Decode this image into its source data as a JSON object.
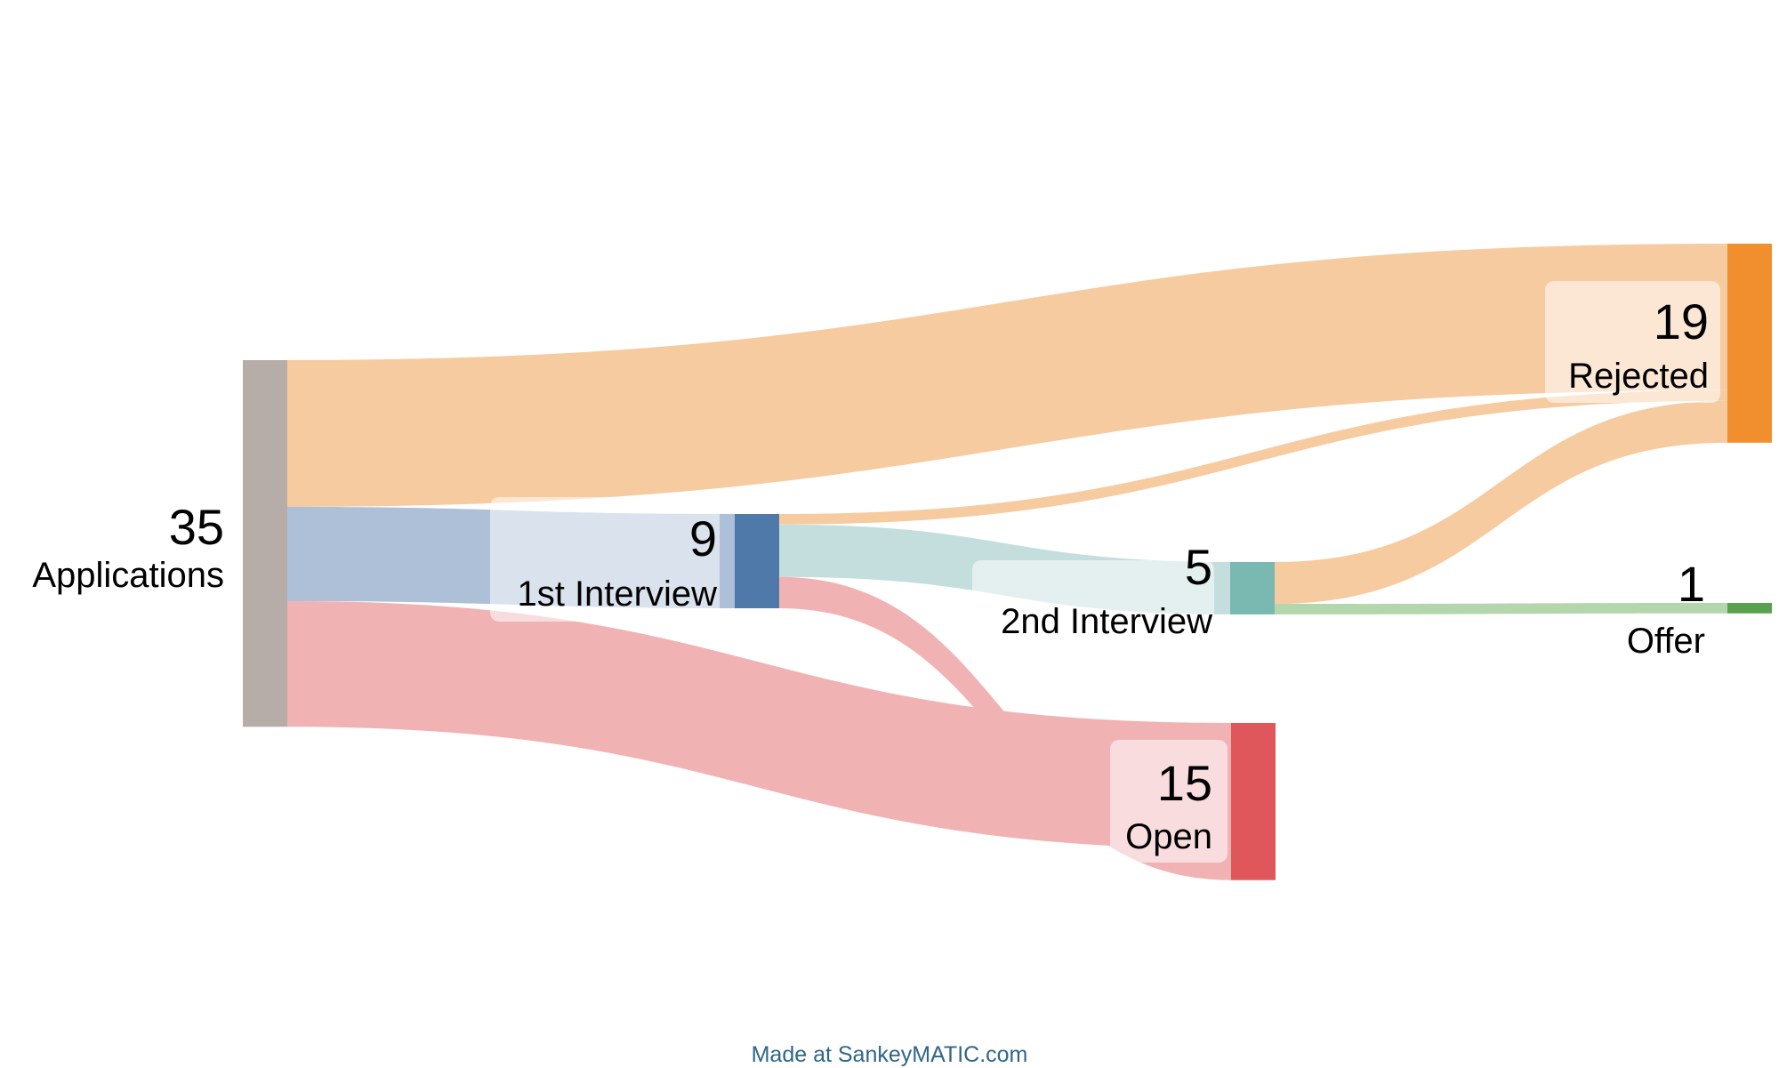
{
  "diagram": {
    "type": "sankey",
    "nodes": [
      {
        "id": "applications",
        "name": "Applications",
        "value": 35,
        "color": "#b6aca8"
      },
      {
        "id": "first",
        "name": "1st Interview",
        "value": 9,
        "color": "#4f79a8"
      },
      {
        "id": "second",
        "name": "2nd Interview",
        "value": 5,
        "color": "#7ab8b2"
      },
      {
        "id": "rejected",
        "name": "Rejected",
        "value": 19,
        "color": "#f18f2f"
      },
      {
        "id": "open",
        "name": "Open",
        "value": 15,
        "color": "#e0575b"
      },
      {
        "id": "offer",
        "name": "Offer",
        "value": 1,
        "color": "#59a14f"
      }
    ],
    "flows": [
      {
        "from": "applications",
        "to": "rejected",
        "value": 14,
        "color": "#f7cba0"
      },
      {
        "from": "applications",
        "to": "first",
        "value": 9,
        "color": "#aec0d7"
      },
      {
        "from": "applications",
        "to": "open",
        "value": 12,
        "color": "#f1b2b4"
      },
      {
        "from": "first",
        "to": "rejected",
        "value": 1,
        "color": "#f7cba0"
      },
      {
        "from": "first",
        "to": "second",
        "value": 5,
        "color": "#c4dedd"
      },
      {
        "from": "first",
        "to": "open",
        "value": 3,
        "color": "#f1b2b4"
      },
      {
        "from": "second",
        "to": "rejected",
        "value": 4,
        "color": "#f7cba0"
      },
      {
        "from": "second",
        "to": "offer",
        "value": 1,
        "color": "#b3d6ad"
      }
    ]
  },
  "footer": {
    "credit": "Made at SankeyMATIC.com"
  }
}
